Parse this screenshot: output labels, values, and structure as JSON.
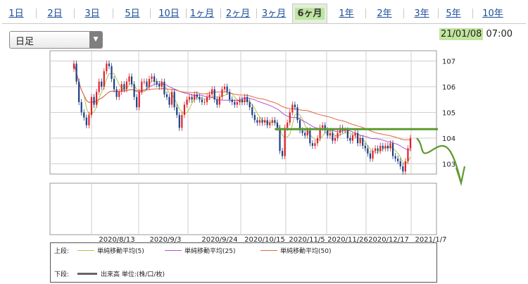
{
  "tabs": [
    {
      "label": "1日",
      "active": false
    },
    {
      "label": "2日",
      "active": false
    },
    {
      "label": "3日",
      "active": false
    },
    {
      "label": "5日",
      "active": false
    },
    {
      "label": "10日",
      "active": false
    },
    {
      "label": "1ヶ月",
      "active": false
    },
    {
      "label": "2ヶ月",
      "active": false
    },
    {
      "label": "3ヶ月",
      "active": false
    },
    {
      "label": "6ヶ月",
      "active": true
    },
    {
      "label": "1年",
      "active": false
    },
    {
      "label": "2年",
      "active": false
    },
    {
      "label": "3年",
      "active": false
    },
    {
      "label": "5年",
      "active": false
    },
    {
      "label": "10年",
      "active": false
    }
  ],
  "period_select": {
    "value": "日足"
  },
  "timestamp": {
    "date": "21/01/08",
    "time": "07:00"
  },
  "legend": {
    "upper_label": "上段:",
    "lower_label": "下段:",
    "items": [
      {
        "label": "単純移動平均(5)",
        "color": "#a8c64a"
      },
      {
        "label": "単純移動平均(25)",
        "color": "#b653d8"
      },
      {
        "label": "単純移動平均(50)",
        "color": "#e4663f"
      }
    ],
    "volume_label": "出来高 単位:(株/口/枚)"
  },
  "colors": {
    "up": "#e0202a",
    "down": "#1d3f86",
    "annotation": "#5c9a2e"
  },
  "chart_data": {
    "type": "candlestick",
    "x_tick_labels": [
      "2020/8/13",
      "2020/9/3",
      "2020/9/24",
      "2020/10/15",
      "2020/11/5",
      "2020/11/26",
      "2020/12/17",
      "2021/1/7"
    ],
    "y_ticks": [
      103,
      104,
      105,
      106,
      107
    ],
    "ylim": [
      102.6,
      107.4
    ],
    "grid": true,
    "closes": [
      106.9,
      106.2,
      105.4,
      105.0,
      104.8,
      104.5,
      104.9,
      105.6,
      105.3,
      105.8,
      106.2,
      106.0,
      106.6,
      106.9,
      106.8,
      106.3,
      105.9,
      105.6,
      105.8,
      106.1,
      105.9,
      106.2,
      106.4,
      106.1,
      105.6,
      105.2,
      105.8,
      106.2,
      106.2,
      106.0,
      106.3,
      106.4,
      106.2,
      106.1,
      106.0,
      106.2,
      105.7,
      105.6,
      105.3,
      105.8,
      105.2,
      104.9,
      104.4,
      104.9,
      105.3,
      105.5,
      105.6,
      105.5,
      105.7,
      105.6,
      105.5,
      105.4,
      105.4,
      105.6,
      105.7,
      105.9,
      105.5,
      105.3,
      105.6,
      105.9,
      106.0,
      105.8,
      105.5,
      105.4,
      105.3,
      105.4,
      105.5,
      105.4,
      105.6,
      105.4,
      105.2,
      104.9,
      104.7,
      104.6,
      104.7,
      104.6,
      104.7,
      104.5,
      104.6,
      104.7,
      104.6,
      104.4,
      103.5,
      103.3,
      104.4,
      104.6,
      105.0,
      105.3,
      105.2,
      104.7,
      104.3,
      104.2,
      104.1,
      104.3,
      103.8,
      103.7,
      103.8,
      104.0,
      104.4,
      104.5,
      104.3,
      104.1,
      104.2,
      103.9,
      104.0,
      104.2,
      104.4,
      104.3,
      104.3,
      104.0,
      103.9,
      104.1,
      104.2,
      103.8,
      104.0,
      103.7,
      103.6,
      103.4,
      103.2,
      103.5,
      103.6,
      103.5,
      103.7,
      103.6,
      103.7,
      103.6,
      103.8,
      103.3,
      103.2,
      103.1,
      102.9,
      102.7,
      103.1,
      103.6,
      104.0
    ],
    "ma_series": [
      {
        "name": "単純移動平均(5)",
        "period": 5
      },
      {
        "name": "単純移動平均(25)",
        "period": 25
      },
      {
        "name": "単純移動平均(50)",
        "period": 50
      }
    ],
    "annotations": [
      {
        "kind": "horizontal_line",
        "y": 104.35
      },
      {
        "kind": "down_arrow",
        "from_y": 104.0,
        "to_y": 102.6
      }
    ]
  }
}
